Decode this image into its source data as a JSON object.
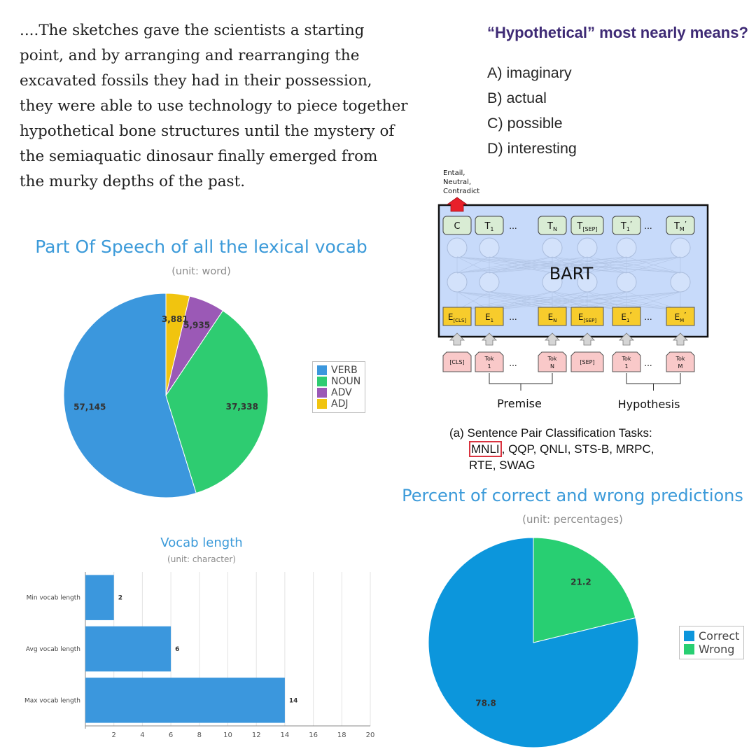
{
  "passage": {
    "lines": [
      "....The sketches gave the scientists a starting",
      "point, and by arranging and rearranging the",
      "excavated fossils they had in their possession,",
      "they were able to use technology to piece together",
      "hypothetical bone structures until the mystery of",
      "the semiaquatic dinosaur finally emerged from",
      "the murky depths of the past."
    ]
  },
  "question": {
    "text": "“Hypothetical” most nearly means?",
    "choices": [
      "A) imaginary",
      "B) actual",
      "C) possible",
      "D) interesting"
    ]
  },
  "bart_diagram": {
    "output_label": [
      "Entail,",
      "Neutral,",
      "Contradict"
    ],
    "model_name": "BART",
    "top_tokens": [
      "C",
      "T",
      "T",
      "T",
      "T",
      "T"
    ],
    "top_subs": [
      "",
      "1",
      "N",
      "[SEP]",
      "1",
      "M"
    ],
    "top_primes": [
      "",
      "",
      "",
      "",
      "’",
      "’"
    ],
    "emb_tokens": [
      "E",
      "E",
      "E",
      "E",
      "E",
      "E"
    ],
    "emb_subs": [
      "[CLS]",
      "1",
      "N",
      "[SEP]",
      "1",
      "M"
    ],
    "emb_primes": [
      "",
      "",
      "",
      "",
      "’",
      "’"
    ],
    "input_tokens": [
      {
        "top": "[CLS]",
        "bot": ""
      },
      {
        "top": "Tok",
        "bot": "1"
      },
      {
        "top": "Tok",
        "bot": "N"
      },
      {
        "top": "[SEP]",
        "bot": ""
      },
      {
        "top": "Tok",
        "bot": "1"
      },
      {
        "top": "Tok",
        "bot": "M"
      }
    ],
    "ellipsis": "...",
    "premise_label": "Premise",
    "hypothesis_label": "Hypothesis",
    "caption_prefix": "(a) Sentence Pair Classification Tasks:",
    "caption_highlight": "MNLI",
    "caption_rest": ", QQP, QNLI, STS-B, MRPC,",
    "caption_line3": "RTE, SWAG",
    "colors": {
      "box_fill": "#c7dafa",
      "token_fill": "#d9ecd4",
      "emb_fill": "#f7cc2c",
      "input_fill": "#f9c9c9",
      "arrow_red": "#e8202a",
      "highlight_border": "#d9333f"
    }
  },
  "chart_data": [
    {
      "type": "pie",
      "title": "Part Of Speech of all the lexical vocab",
      "subtitle": "(unit: word)",
      "categories": [
        "VERB",
        "NOUN",
        "ADV",
        "ADJ"
      ],
      "values": [
        57145,
        37338,
        5935,
        3881
      ],
      "value_labels": [
        "57,145",
        "37,338",
        "5,935",
        "3,881"
      ],
      "colors": [
        "#3b97dd",
        "#2ecc71",
        "#9b59b6",
        "#f1c40f"
      ],
      "legend": "right"
    },
    {
      "type": "bar",
      "orientation": "horizontal",
      "title": "Vocab length",
      "subtitle": "(unit: character)",
      "categories": [
        "Min vocab length",
        "Avg vocab length",
        "Max vocab length"
      ],
      "values": [
        2,
        6,
        14
      ],
      "xlim": [
        0,
        20
      ],
      "xticks": [
        2,
        4,
        6,
        8,
        10,
        12,
        14,
        16,
        18,
        20
      ],
      "grid": true,
      "color": "#3b97dd"
    },
    {
      "type": "pie",
      "title": "Percent of correct and wrong predictions",
      "subtitle": "(unit: percentages)",
      "categories": [
        "Correct",
        "Wrong"
      ],
      "values": [
        78.8,
        21.2
      ],
      "value_labels": [
        "78.8",
        "21.2"
      ],
      "colors": [
        "#0c96dc",
        "#28cf72"
      ],
      "legend": "right"
    }
  ]
}
